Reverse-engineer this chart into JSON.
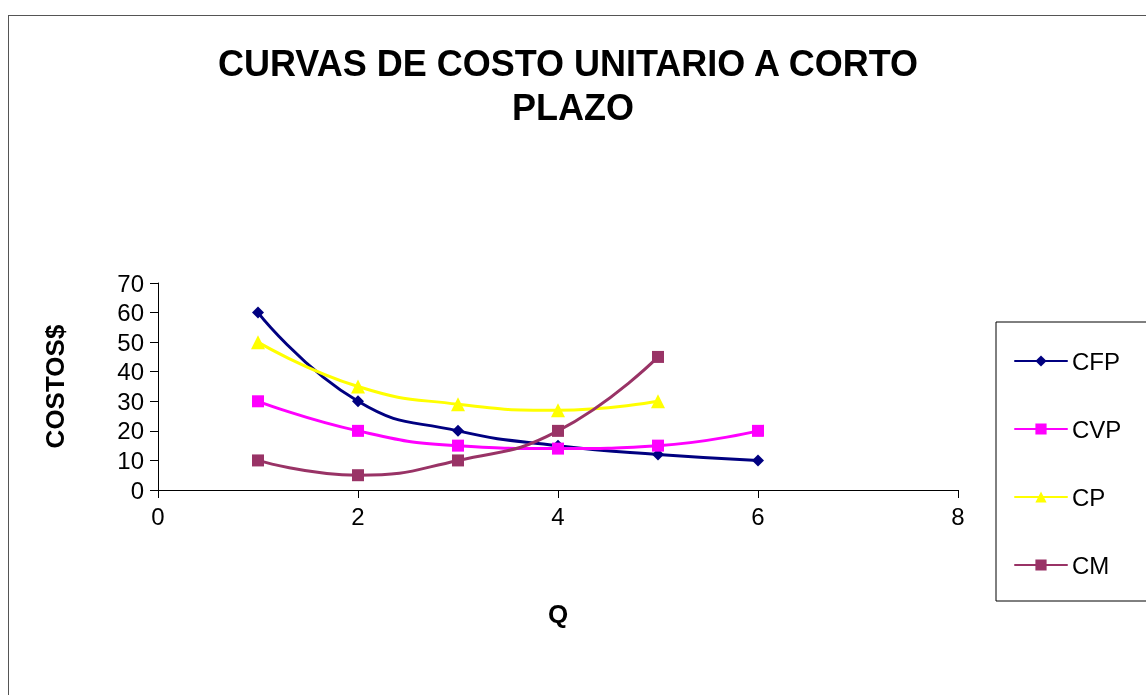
{
  "chart_data": {
    "type": "line",
    "title": "CURVAS DE COSTO UNITARIO A CORTO PLAZO",
    "xlabel": "Q",
    "ylabel": "COSTOS$",
    "x": [
      1,
      2,
      3,
      4,
      5,
      6
    ],
    "series": [
      {
        "name": "CFP",
        "color": "#000080",
        "marker": "diamond",
        "values": [
          60,
          30,
          20,
          15,
          12,
          10
        ]
      },
      {
        "name": "CVP",
        "color": "#ff00ff",
        "marker": "square",
        "values": [
          30,
          20,
          15,
          14,
          15,
          20
        ]
      },
      {
        "name": "CP",
        "color": "#ffff00",
        "marker": "triangle",
        "x": [
          1,
          2,
          3,
          4,
          5
        ],
        "values": [
          50,
          35,
          29,
          27,
          30
        ]
      },
      {
        "name": "CM",
        "color": "#993366",
        "marker": "square",
        "x": [
          1,
          2,
          3,
          4,
          5
        ],
        "values": [
          10,
          5,
          10,
          20,
          45
        ]
      }
    ],
    "xlim": [
      0,
      8
    ],
    "xticks": [
      0,
      2,
      4,
      6,
      8
    ],
    "ylim": [
      0,
      70
    ],
    "yticks": [
      0,
      10,
      20,
      30,
      40,
      50,
      60,
      70
    ],
    "grid": false,
    "legend": "right",
    "line_style": "solid"
  }
}
